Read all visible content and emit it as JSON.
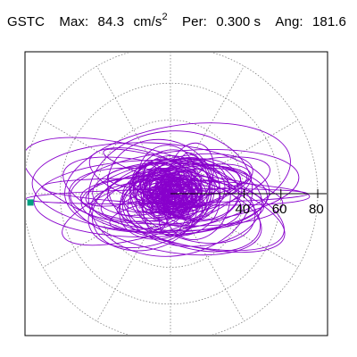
{
  "header": {
    "station": "GSTC",
    "max_label": "Max:",
    "max_value": "84.3",
    "max_unit_base": "cm/s",
    "max_unit_exp": "2",
    "per_label": "Per:",
    "per_value": "0.300 s",
    "ang_label": "Ang:",
    "ang_value": "181.6"
  },
  "colors": {
    "trace": "#8800cc",
    "marker": "#00a080",
    "grid": "#808080",
    "axis": "#000000"
  },
  "chart_data": {
    "type": "scatter",
    "title": "",
    "xlabel": "",
    "ylabel": "",
    "coordinate_system": "polar",
    "radial_max": 84.3,
    "radial_ticks": [
      40,
      60,
      80
    ],
    "radial_tick_labels": [
      "40",
      "60",
      "80"
    ],
    "grid_circle_values": [
      20,
      40,
      60,
      80
    ],
    "spoke_angles_deg": [
      0,
      30,
      60,
      90,
      120,
      150,
      180,
      210,
      240,
      270,
      300,
      330
    ],
    "grid": true,
    "max_direction_deg": 181.6,
    "series": [
      {
        "values": "horizontal-response orbit trace (particle motion), dominant E-W elongation",
        "points": []
      }
    ]
  }
}
